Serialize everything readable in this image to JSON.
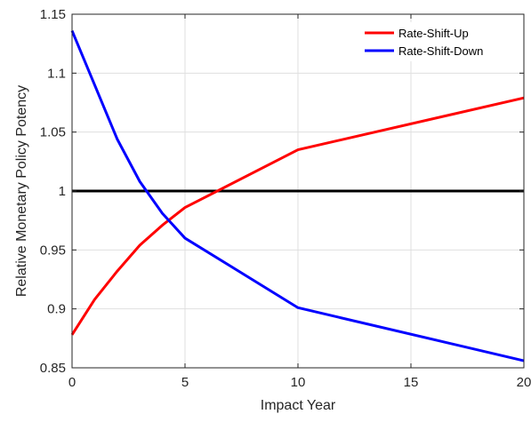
{
  "chart_data": {
    "type": "line",
    "title": "",
    "xlabel": "Impact Year",
    "ylabel": "Relative Monetary Policy Potency",
    "xlim": [
      0,
      20
    ],
    "ylim": [
      0.85,
      1.15
    ],
    "xticks": [
      0,
      5,
      10,
      15,
      20
    ],
    "xtick_labels": [
      "0",
      "5",
      "10",
      "15",
      "20"
    ],
    "yticks": [
      0.85,
      0.9,
      0.95,
      1.0,
      1.05,
      1.1,
      1.15
    ],
    "ytick_labels": [
      "0.85",
      "0.9",
      "0.95",
      "1",
      "1.05",
      "1.1",
      "1.15"
    ],
    "grid": true,
    "legend_position": "top-right",
    "series": [
      {
        "name": "Rate-Shift-Up",
        "color": "#ff0000",
        "x": [
          0,
          1,
          2,
          3,
          4,
          5,
          10,
          20
        ],
        "y": [
          0.878,
          0.908,
          0.932,
          0.954,
          0.971,
          0.986,
          1.035,
          1.079
        ]
      },
      {
        "name": "Rate-Shift-Down",
        "color": "#0000ff",
        "x": [
          0,
          1,
          2,
          3,
          4,
          5,
          10,
          20
        ],
        "y": [
          1.136,
          1.09,
          1.044,
          1.008,
          0.981,
          0.96,
          0.901,
          0.856
        ]
      }
    ],
    "reference_lines": [
      {
        "y": 1.0,
        "color": "#000000"
      }
    ]
  }
}
